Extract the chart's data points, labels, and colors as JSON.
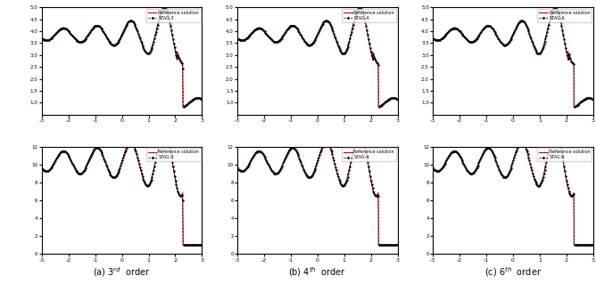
{
  "xlim": [
    -3,
    3
  ],
  "density_ylim": [
    0.5,
    5.0
  ],
  "pressure_ylim": [
    0,
    12
  ],
  "density_yticks": [
    1.0,
    1.5,
    2.0,
    2.5,
    3.0,
    3.5,
    4.0,
    4.5,
    5.0
  ],
  "pressure_yticks": [
    0,
    2,
    4,
    6,
    8,
    10,
    12
  ],
  "xticks": [
    -3,
    -2,
    -1,
    0,
    1,
    2,
    3
  ],
  "subplot_titles": [
    "(a) 3$^{rd}$  order",
    "(b) 4$^{th}$  order",
    "(c) 6$^{th}$  order"
  ],
  "legend_labels_num": [
    "STAG-3",
    "STAG-4",
    "STAG-6"
  ],
  "legend_label_ref": "Reference solution",
  "ref_color": "#cc0000",
  "num_color": "black",
  "linewidth_ref": 0.7,
  "linewidth_num": 0.5,
  "fig_width": 6.68,
  "fig_height": 3.28,
  "dpi": 100
}
